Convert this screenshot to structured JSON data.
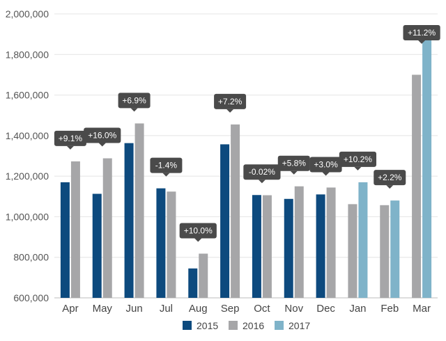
{
  "chart_data": {
    "type": "bar",
    "title": "",
    "xlabel": "",
    "ylabel": "",
    "ylim": [
      600000,
      2000000
    ],
    "yticks": [
      600000,
      800000,
      1000000,
      1200000,
      1400000,
      1600000,
      1800000,
      2000000
    ],
    "ytick_labels": [
      "600,000",
      "800,000",
      "1,000,000",
      "1,200,000",
      "1,400,000",
      "1,600,000",
      "1,800,000",
      "2,000,000"
    ],
    "categories": [
      "Apr",
      "May",
      "Jun",
      "Jul",
      "Aug",
      "Sep",
      "Oct",
      "Nov",
      "Dec",
      "Jan",
      "Feb",
      "Mar"
    ],
    "series": [
      {
        "name": "2015",
        "color": "#0d4a7e",
        "values": [
          1170000,
          1113000,
          1363000,
          1140000,
          745000,
          1357000,
          1107000,
          1088000,
          1110000,
          null,
          null,
          null
        ]
      },
      {
        "name": "2016",
        "color": "#a6a6a8",
        "values": [
          1273000,
          1288000,
          1460000,
          1124000,
          818000,
          1455000,
          1106000,
          1150000,
          1144000,
          1062000,
          1057000,
          1700000
        ]
      },
      {
        "name": "2017",
        "color": "#7fb3c9",
        "values": [
          null,
          null,
          null,
          null,
          null,
          null,
          null,
          null,
          null,
          1170000,
          1080000,
          1890000
        ]
      }
    ],
    "annotations": [
      "+9.1%",
      "+16.0%",
      "+6.9%",
      "-1.4%",
      "+10.0%",
      "+7.2%",
      "-0.02%",
      "+5.8%",
      "+3.0%",
      "+10.2%",
      "+2.2%",
      "+11.2%"
    ],
    "legend_position": "bottom",
    "grid": true
  }
}
